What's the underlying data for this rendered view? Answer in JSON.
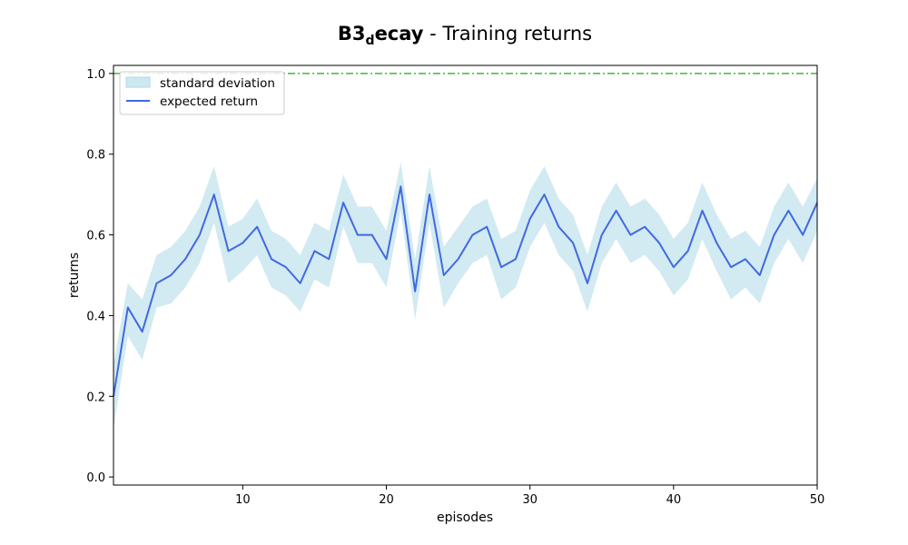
{
  "chart_data": {
    "type": "line",
    "title_bold": "B3",
    "title_bold_sub": "d",
    "title_bold_tail": "ecay",
    "title_rest": " - Training returns",
    "xlabel": "episodes",
    "ylabel": "returns",
    "xlim": [
      1,
      50
    ],
    "ylim": [
      -0.02,
      1.02
    ],
    "x_ticks": [
      10,
      20,
      30,
      40,
      50
    ],
    "x_tick_labels": [
      "10",
      "20",
      "30",
      "40",
      "50"
    ],
    "y_ticks": [
      0.0,
      0.2,
      0.4,
      0.6,
      0.8,
      1.0
    ],
    "y_tick_labels": [
      "0.0",
      "0.2",
      "0.4",
      "0.6",
      "0.8",
      "1.0"
    ],
    "grid": false,
    "legend_position": "top-left",
    "reference_line": {
      "y": 1.0,
      "color": "#3cb93c",
      "style": "dashdot"
    },
    "series": [
      {
        "name": "expected return",
        "color": "#4169e1",
        "x": [
          1,
          2,
          3,
          4,
          5,
          6,
          7,
          8,
          9,
          10,
          11,
          12,
          13,
          14,
          15,
          16,
          17,
          18,
          19,
          20,
          21,
          22,
          23,
          24,
          25,
          26,
          27,
          28,
          29,
          30,
          31,
          32,
          33,
          34,
          35,
          36,
          37,
          38,
          39,
          40,
          41,
          42,
          43,
          44,
          45,
          46,
          47,
          48,
          49,
          50
        ],
        "values": [
          0.2,
          0.42,
          0.36,
          0.48,
          0.5,
          0.54,
          0.6,
          0.7,
          0.56,
          0.58,
          0.62,
          0.54,
          0.52,
          0.48,
          0.56,
          0.54,
          0.68,
          0.6,
          0.6,
          0.54,
          0.72,
          0.46,
          0.7,
          0.5,
          0.54,
          0.6,
          0.62,
          0.52,
          0.54,
          0.64,
          0.7,
          0.62,
          0.58,
          0.48,
          0.6,
          0.66,
          0.6,
          0.62,
          0.58,
          0.52,
          0.56,
          0.66,
          0.58,
          0.52,
          0.54,
          0.5,
          0.6,
          0.66,
          0.6,
          0.68
        ]
      }
    ],
    "band": {
      "name": "standard deviation",
      "color": "#add8e6",
      "upper": [
        0.28,
        0.48,
        0.44,
        0.55,
        0.57,
        0.61,
        0.67,
        0.77,
        0.62,
        0.64,
        0.69,
        0.61,
        0.59,
        0.55,
        0.63,
        0.61,
        0.75,
        0.67,
        0.67,
        0.61,
        0.78,
        0.54,
        0.77,
        0.57,
        0.62,
        0.67,
        0.69,
        0.59,
        0.61,
        0.71,
        0.77,
        0.69,
        0.65,
        0.55,
        0.67,
        0.73,
        0.67,
        0.69,
        0.65,
        0.59,
        0.63,
        0.73,
        0.65,
        0.59,
        0.61,
        0.57,
        0.67,
        0.73,
        0.67,
        0.74
      ],
      "lower": [
        0.12,
        0.35,
        0.29,
        0.42,
        0.43,
        0.47,
        0.53,
        0.63,
        0.48,
        0.51,
        0.55,
        0.47,
        0.45,
        0.41,
        0.49,
        0.47,
        0.62,
        0.53,
        0.53,
        0.47,
        0.66,
        0.39,
        0.63,
        0.42,
        0.48,
        0.53,
        0.55,
        0.44,
        0.47,
        0.57,
        0.63,
        0.55,
        0.51,
        0.41,
        0.53,
        0.59,
        0.53,
        0.55,
        0.51,
        0.45,
        0.49,
        0.59,
        0.51,
        0.44,
        0.47,
        0.43,
        0.53,
        0.59,
        0.53,
        0.61
      ]
    }
  }
}
